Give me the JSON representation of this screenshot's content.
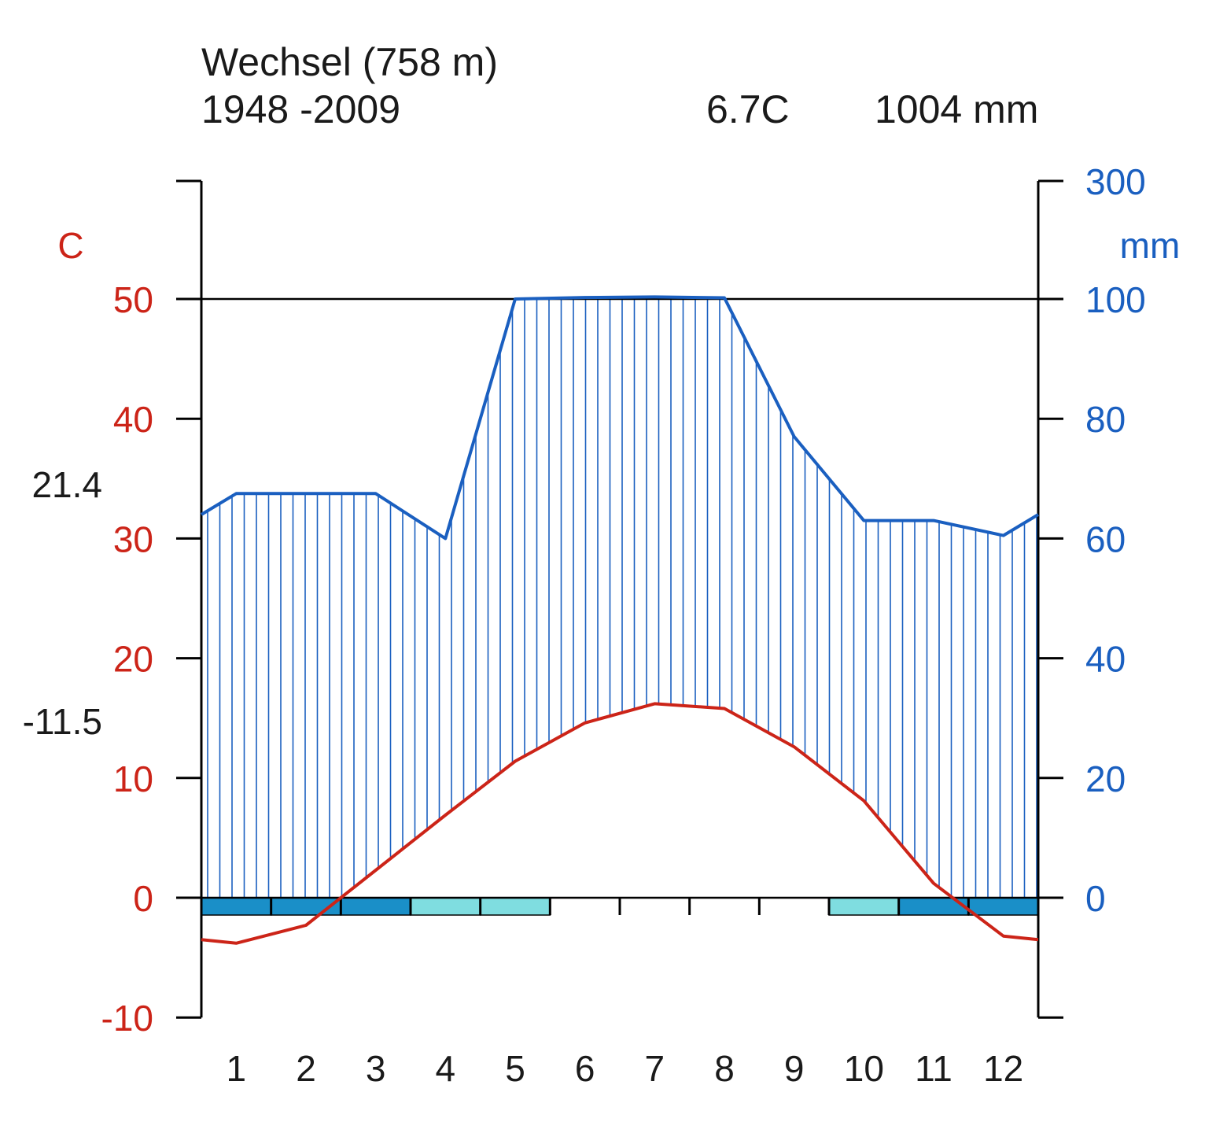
{
  "header": {
    "station": "Wechsel (758 m)",
    "period": "1948 -2009",
    "mean_temp": "6.7C",
    "total_precip": "1004 mm"
  },
  "colors": {
    "temp": "#cc2418",
    "precip": "#1a5fc0",
    "precip_dark": "#0d4fb8",
    "frost_sure": "#1a8fc8",
    "frost_possible": "#7fdde0",
    "axis": "#000000"
  },
  "chart_data": {
    "type": "line",
    "title": "Wechsel (758 m)",
    "months": [
      "1",
      "2",
      "3",
      "4",
      "5",
      "6",
      "7",
      "8",
      "9",
      "10",
      "11",
      "12"
    ],
    "temperature": {
      "name": "Temperature",
      "unit": "C",
      "values": [
        -3.8,
        -2.3,
        2.3,
        6.9,
        11.4,
        14.6,
        16.2,
        15.8,
        12.6,
        8.1,
        1.2,
        -3.2
      ]
    },
    "precipitation": {
      "name": "Precipitation",
      "unit": "mm",
      "values": [
        67.5,
        67.5,
        67.5,
        60,
        100,
        102.5,
        103.5,
        102,
        77,
        63,
        63,
        60.5
      ]
    },
    "left_axis": {
      "label": "C",
      "range": [
        -10,
        60
      ],
      "ticks": [
        -10,
        0,
        10,
        20,
        30,
        40,
        50
      ],
      "tick_labels": [
        "-10",
        "0",
        "10",
        "20",
        "30",
        "40",
        "50"
      ]
    },
    "right_axis": {
      "label": "mm",
      "ticks": [
        0,
        20,
        40,
        60,
        80,
        100,
        300
      ],
      "tick_labels": [
        "0",
        "20",
        "40",
        "60",
        "80",
        "100",
        "300"
      ]
    },
    "side_labels": {
      "max_temp_warmest": "21.4",
      "min_temp_coldest": "-11.5"
    },
    "frost_bar": [
      "sure",
      "sure",
      "sure",
      "possible",
      "possible",
      "none",
      "none",
      "none",
      "none",
      "possible",
      "sure",
      "sure"
    ]
  }
}
